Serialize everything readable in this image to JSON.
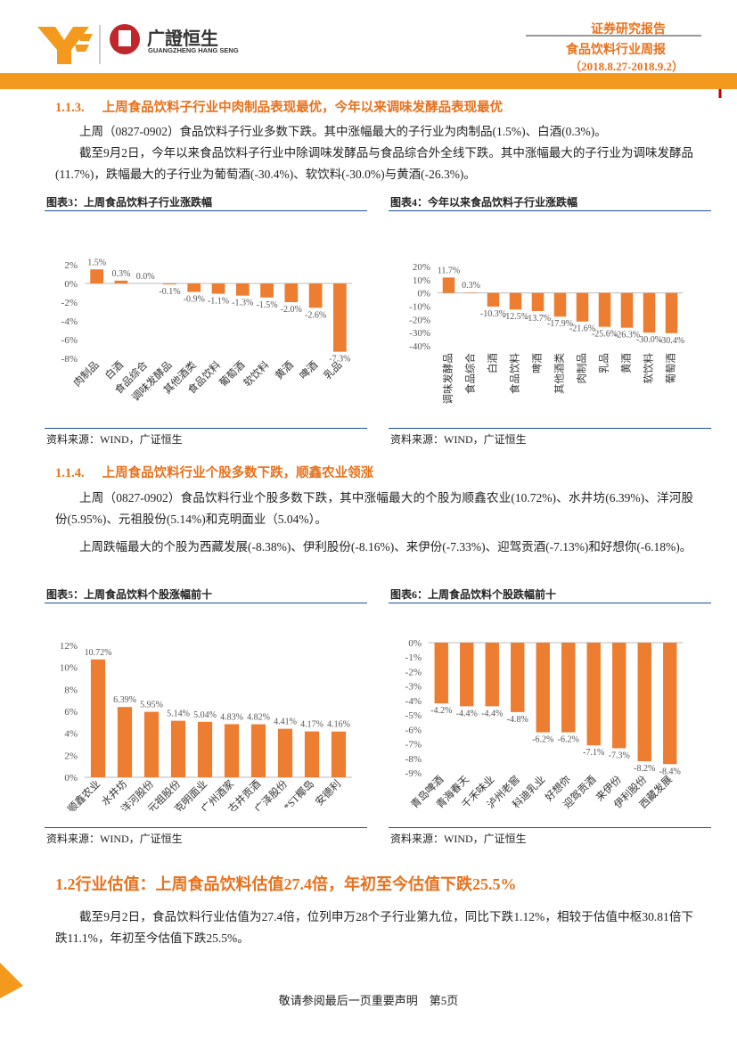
{
  "header": {
    "brand_cn": "广證恒生",
    "brand_en": "GUANGZHENG HANG SENG",
    "report_type": "证券研究报告",
    "report_title": "食品饮料行业周报",
    "period": "（2018.8.27-2018.9.2）"
  },
  "sections": [
    {
      "number": "1.1.3.",
      "heading": "上周食品饮料子行业中肉制品表现最优，今年以来调味发酵品表现最优",
      "paragraphs": [
        "上周（0827-0902）食品饮料子行业多数下跌。其中涨幅最大的子行业为肉制品(1.5%)、白酒(0.3%)。",
        "截至9月2日，今年以来食品饮料子行业中除调味发酵品与食品综合外全线下跌。其中涨幅最大的子行业为调味发酵品(11.7%)，跌幅最大的子行业为葡萄酒(-30.4%)、软饮料(-30.0%)与黄酒(-26.3%)。"
      ]
    },
    {
      "number": "1.1.4.",
      "heading": "上周食品饮料行业个股多数下跌，顺鑫农业领涨",
      "paragraphs": [
        "上周（0827-0902）食品饮料行业个股多数下跌，其中涨幅最大的个股为顺鑫农业(10.72%)、水井坊(6.39%)、洋河股份(5.95%)、元祖股份(5.14%)和克明面业（5.04%）。",
        "上周跌幅最大的个股为西藏发展(-8.38%)、伊利股份(-8.16%)、来伊份(-7.33%)、迎驾贡酒(-7.13%)和好想你(-6.18%)。"
      ]
    },
    {
      "number": "1.2",
      "heading": "行业估值：上周食品饮料估值27.4倍，年初至今估值下跌25.5%",
      "paragraphs": [
        "截至9月2日，食品饮料行业估值为27.4倍，位列申万28个子行业第九位，同比下跌1.12%，相较于估值中枢30.81倍下跌11.1%，年初至今估值下跌25.5%。"
      ]
    }
  ],
  "chart_data": [
    {
      "type": "bar",
      "title": "图表3：上周食品饮料子行业涨跌幅",
      "source": "资料来源：WIND，广证恒生",
      "color": "#ed7d31",
      "categories": [
        "肉制品",
        "白酒",
        "食品综合",
        "调味发酵品",
        "其他酒类",
        "食品饮料",
        "葡萄酒",
        "软饮料",
        "黄酒",
        "啤酒",
        "乳品"
      ],
      "values": [
        1.5,
        0.3,
        0,
        -0.1,
        -0.9,
        -1.1,
        -1.3,
        -1.5,
        -2.0,
        -2.6,
        -7.3
      ],
      "value_labels": [
        "1.5%",
        "0.3%",
        "0.0%",
        "-0.1%",
        "-0.9%",
        "-1.1%",
        "-1.3%",
        "-1.5%",
        "-2.0%",
        "-2.6%",
        "-7.3%"
      ],
      "ylim": [
        -8,
        2
      ],
      "yticks": [
        {
          "value": 2,
          "label": "2%"
        },
        {
          "value": 0,
          "label": "0%"
        },
        {
          "value": -2,
          "label": "-2%"
        },
        {
          "value": -4,
          "label": "-4%"
        },
        {
          "value": -6,
          "label": "-6%"
        },
        {
          "value": -8,
          "label": "-8%"
        }
      ]
    },
    {
      "type": "bar",
      "title": "图表4：今年以来食品饮料子行业涨跌幅",
      "source": "资料来源：WIND，广证恒生",
      "color": "#ed7d31",
      "categories": [
        "调味发酵品",
        "食品综合",
        "白酒",
        "食品饮料",
        "啤酒",
        "其他酒类",
        "肉制品",
        "乳品",
        "黄酒",
        "软饮料",
        "葡萄酒"
      ],
      "values": [
        11.7,
        0.3,
        -10.3,
        -12.5,
        -13.7,
        -17.9,
        -21.6,
        -25.6,
        -26.3,
        -30.0,
        -30.4
      ],
      "value_labels": [
        "11.7%",
        "0.3%",
        "-10.3%",
        "-12.5%",
        "-13.7%",
        "-17.9%",
        "-21.6%",
        "-25.6%",
        "-26.3%",
        "-30.0%",
        "-30.4%"
      ],
      "ylim": [
        -40,
        20
      ],
      "yticks": [
        {
          "value": 20,
          "label": "20%"
        },
        {
          "value": 10,
          "label": "10%"
        },
        {
          "value": 0,
          "label": "0%"
        },
        {
          "value": -10,
          "label": "-10%"
        },
        {
          "value": -20,
          "label": "-20%"
        },
        {
          "value": -30,
          "label": "-30%"
        },
        {
          "value": -40,
          "label": "-40%"
        }
      ]
    },
    {
      "type": "bar",
      "title": "图表5：上周食品饮料个股涨幅前十",
      "source": "资料来源：WIND，广证恒生",
      "color": "#ed7d31",
      "categories": [
        "顺鑫农业",
        "水井坊",
        "洋河股份",
        "元祖股份",
        "克明面业",
        "广州酒家",
        "古井贡酒",
        "广泽股份",
        "*ST椰岛",
        "安德利"
      ],
      "values": [
        10.72,
        6.39,
        5.95,
        5.14,
        5.04,
        4.83,
        4.82,
        4.41,
        4.17,
        4.16
      ],
      "value_labels": [
        "10.72%",
        "6.39%",
        "5.95%",
        "5.14%",
        "5.04%",
        "4.83%",
        "4.82%",
        "4.41%",
        "4.17%",
        "4.16%"
      ],
      "ylim": [
        0,
        12
      ],
      "yticks": [
        {
          "value": 12,
          "label": "12%"
        },
        {
          "value": 10,
          "label": "10%"
        },
        {
          "value": 8,
          "label": "8%"
        },
        {
          "value": 6,
          "label": "6%"
        },
        {
          "value": 4,
          "label": "4%"
        },
        {
          "value": 2,
          "label": "2%"
        },
        {
          "value": 0,
          "label": "0%"
        }
      ]
    },
    {
      "type": "bar",
      "title": "图表6：上周食品饮料个股跌幅前十",
      "source": "资料来源：WIND，广证恒生",
      "color": "#ed7d31",
      "categories": [
        "青岛啤酒",
        "青海春天",
        "千禾味业",
        "泸州老窖",
        "科迪乳业",
        "好想你",
        "迎驾贡酒",
        "来伊份",
        "伊利股份",
        "西藏发展"
      ],
      "values": [
        -4.2,
        -4.4,
        -4.4,
        -4.8,
        -6.2,
        -6.2,
        -7.1,
        -7.3,
        -8.2,
        -8.4
      ],
      "value_labels": [
        "-4.2%",
        "-4.4%",
        "-4.4%",
        "-4.8%",
        "-6.2%",
        "-6.2%",
        "-7.1%",
        "-7.3%",
        "-8.2%",
        "-8.4%"
      ],
      "ylim": [
        -9,
        0
      ],
      "yticks": [
        {
          "value": 0,
          "label": "0%"
        },
        {
          "value": -1,
          "label": "-1%"
        },
        {
          "value": -2,
          "label": "-2%"
        },
        {
          "value": -3,
          "label": "-3%"
        },
        {
          "value": -4,
          "label": "-4%"
        },
        {
          "value": -5,
          "label": "-5%"
        },
        {
          "value": -6,
          "label": "-6%"
        },
        {
          "value": -7,
          "label": "-7%"
        },
        {
          "value": -8,
          "label": "-8%"
        },
        {
          "value": -9,
          "label": "-9%"
        }
      ]
    }
  ],
  "footer": {
    "text": "敬请参阅最后一页重要声明　第5页"
  }
}
